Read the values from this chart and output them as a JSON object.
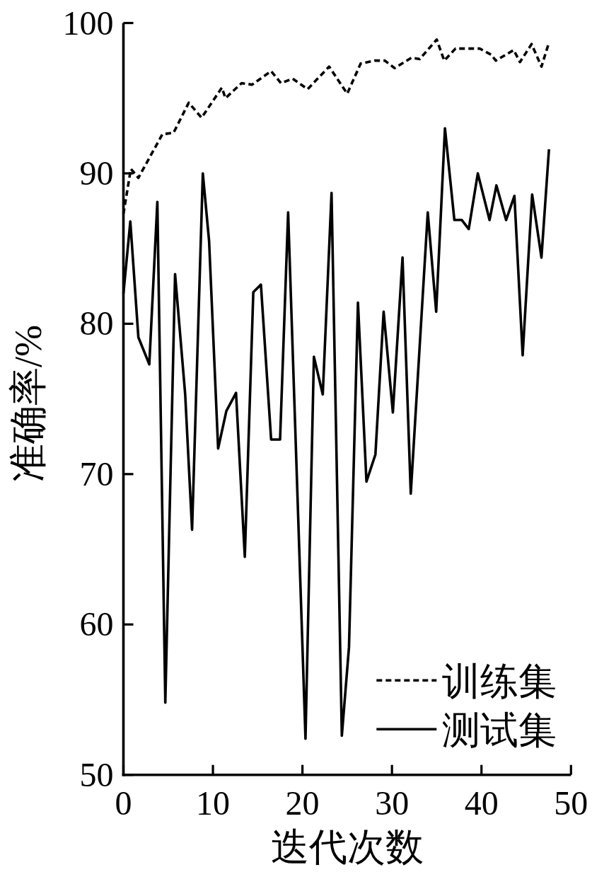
{
  "chart_data": {
    "type": "line",
    "xlabel": "迭代次数",
    "ylabel": "准确率/%",
    "xlim": [
      0,
      50
    ],
    "ylim": [
      50,
      100
    ],
    "xticks": [
      0,
      10,
      20,
      30,
      40,
      50
    ],
    "yticks": [
      50,
      60,
      70,
      80,
      90,
      100
    ],
    "grid": false,
    "legend": "bottom right",
    "series": [
      {
        "name": "训练集",
        "color": "#000000",
        "line_style": "dashed",
        "x": [
          0,
          0.83,
          1.67,
          4.35,
          5.6,
          7.3,
          8.73,
          11.0,
          11.4,
          13.2,
          14.37,
          16.5,
          17.6,
          18.9,
          20.58,
          22.98,
          25.0,
          26.5,
          28.1,
          29.2,
          30.3,
          32.2,
          33.1,
          35.0,
          35.84,
          37.1,
          39.8,
          41.06,
          41.6,
          43.6,
          44.3,
          45.6,
          46.7,
          47.54
        ],
        "values": [
          87.3,
          90.3,
          89.7,
          92.6,
          92.7,
          94.7,
          93.7,
          95.7,
          95.0,
          96.0,
          95.9,
          96.8,
          96.0,
          96.3,
          95.6,
          97.1,
          95.3,
          97.3,
          97.5,
          97.5,
          97.0,
          97.7,
          97.6,
          98.9,
          97.5,
          98.3,
          98.3,
          97.9,
          97.5,
          98.2,
          97.4,
          98.6,
          97.1,
          98.7
        ]
      },
      {
        "name": "测试集",
        "color": "#000000",
        "line_style": "solid",
        "x": [
          0,
          0.77,
          1.67,
          2.89,
          3.79,
          4.68,
          5.77,
          6.9,
          7.67,
          8.87,
          9.57,
          10.58,
          11.5,
          12.58,
          13.56,
          14.51,
          15.36,
          16.5,
          17.5,
          18.4,
          20.34,
          21.28,
          22.27,
          23.25,
          24.4,
          25.2,
          26.2,
          27.15,
          28.15,
          29.07,
          30.1,
          31.18,
          32.1,
          34.0,
          34.94,
          35.92,
          36.97,
          37.8,
          38.58,
          39.59,
          40.9,
          41.67,
          42.75,
          43.68,
          44.6,
          45.66,
          46.7,
          47.54
        ],
        "values": [
          82.0,
          86.8,
          79.1,
          77.3,
          88.1,
          54.8,
          83.3,
          75.3,
          66.3,
          90.0,
          85.5,
          71.7,
          74.2,
          75.4,
          64.5,
          82.1,
          82.6,
          72.3,
          72.3,
          87.4,
          52.4,
          77.8,
          75.3,
          88.7,
          52.6,
          58.5,
          81.4,
          69.5,
          71.3,
          80.8,
          74.1,
          84.4,
          68.7,
          87.4,
          80.8,
          93.0,
          86.9,
          86.9,
          86.3,
          90.0,
          86.9,
          89.2,
          86.9,
          88.5,
          77.9,
          88.6,
          84.4,
          91.6
        ]
      }
    ]
  }
}
